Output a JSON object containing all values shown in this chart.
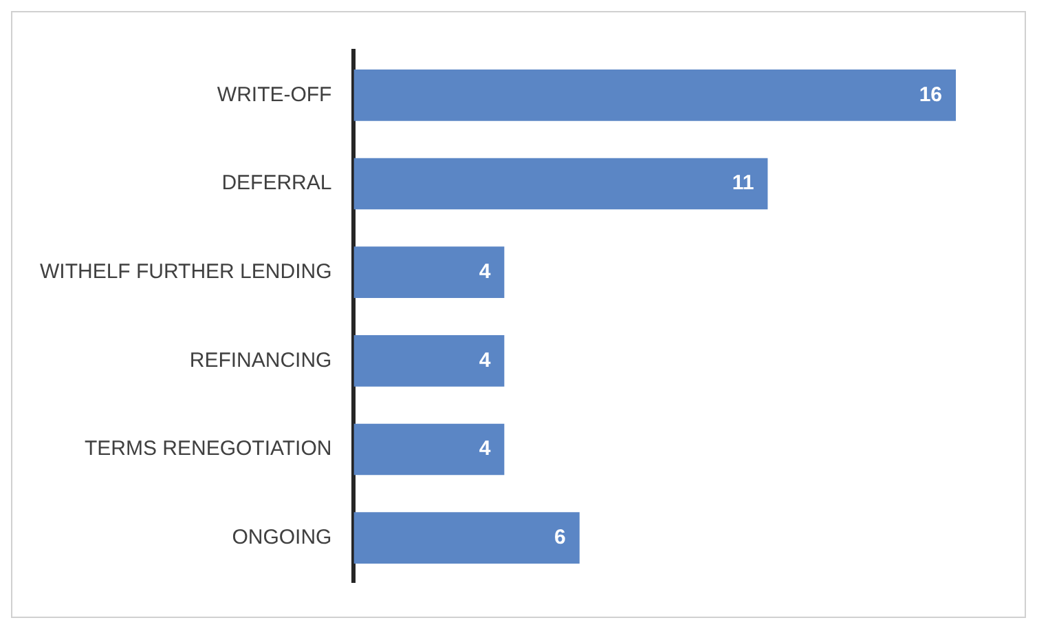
{
  "chart_data": {
    "type": "bar",
    "orientation": "horizontal",
    "categories": [
      "WRITE-OFF",
      "DEFERRAL",
      "WITHELF FURTHER LENDING",
      "REFINANCING",
      "TERMS RENEGOTIATION",
      "ONGOING"
    ],
    "values": [
      16,
      11,
      4,
      4,
      4,
      6
    ],
    "color": "#5b86c5",
    "data_labels": true,
    "grid": false,
    "legend": false
  }
}
